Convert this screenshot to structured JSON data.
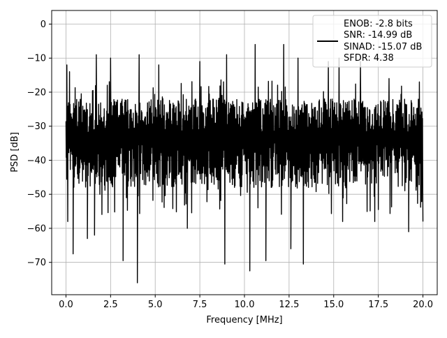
{
  "chart_data": {
    "type": "line",
    "title": "",
    "xlabel": "Frequency [MHz]",
    "ylabel": "PSD [dB]",
    "xlim": [
      -0.8,
      20.8
    ],
    "ylim": [
      -79.5,
      4
    ],
    "xticks": [
      0.0,
      2.5,
      5.0,
      7.5,
      10.0,
      12.5,
      15.0,
      17.5,
      20.0
    ],
    "xtick_labels": [
      "0.0",
      "2.5",
      "5.0",
      "7.5",
      "10.0",
      "12.5",
      "15.0",
      "17.5",
      "20.0"
    ],
    "yticks": [
      0,
      -10,
      -20,
      -30,
      -40,
      -50,
      -60,
      -70
    ],
    "ytick_labels": [
      "0",
      "−10",
      "−20",
      "−30",
      "−40",
      "−50",
      "−60",
      "−70"
    ],
    "grid": true,
    "legend_position": "top-right",
    "series": [
      {
        "color": "#000000",
        "description": "dense noise-like PSD trace from 0 to 20 MHz, mostly between -20 and -50 dB",
        "band_upper_db": -22,
        "band_lower_db": -48,
        "peaks": [
          {
            "x": 0.05,
            "y": -12
          },
          {
            "x": 0.2,
            "y": -14
          },
          {
            "x": 1.7,
            "y": -9
          },
          {
            "x": 2.5,
            "y": -10
          },
          {
            "x": 4.1,
            "y": -9
          },
          {
            "x": 5.2,
            "y": -12
          },
          {
            "x": 7.5,
            "y": -11
          },
          {
            "x": 9.0,
            "y": -9
          },
          {
            "x": 10.6,
            "y": -6
          },
          {
            "x": 12.2,
            "y": -6
          },
          {
            "x": 13.0,
            "y": -10
          },
          {
            "x": 14.7,
            "y": -11
          },
          {
            "x": 15.3,
            "y": -10
          },
          {
            "x": 16.5,
            "y": -11
          },
          {
            "x": 18.1,
            "y": -16
          },
          {
            "x": 19.8,
            "y": -17
          }
        ],
        "troughs": [
          {
            "x": 0.1,
            "y": -58
          },
          {
            "x": 0.4,
            "y": -67.5
          },
          {
            "x": 1.2,
            "y": -63
          },
          {
            "x": 1.6,
            "y": -62
          },
          {
            "x": 3.2,
            "y": -69.5
          },
          {
            "x": 4.0,
            "y": -76
          },
          {
            "x": 6.8,
            "y": -60
          },
          {
            "x": 8.9,
            "y": -70.5
          },
          {
            "x": 10.3,
            "y": -72.5
          },
          {
            "x": 11.2,
            "y": -69.5
          },
          {
            "x": 12.6,
            "y": -66
          },
          {
            "x": 13.3,
            "y": -70.5
          },
          {
            "x": 15.5,
            "y": -58
          },
          {
            "x": 17.3,
            "y": -58
          },
          {
            "x": 19.2,
            "y": -61
          },
          {
            "x": 20.0,
            "y": -58
          }
        ]
      }
    ],
    "legend": {
      "lines": [
        "ENOB: -2.8 bits",
        "SNR: -14.99 dB",
        "SINAD: -15.07 dB",
        "SFDR: 4.38"
      ]
    }
  }
}
